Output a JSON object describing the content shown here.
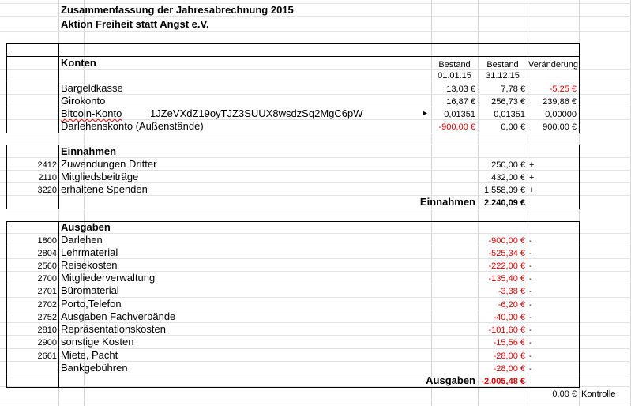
{
  "title": {
    "line1": "Zusammenfassung der Jahresabrechnung 2015",
    "line2": "Aktion Freiheit statt Angst e.V."
  },
  "konten": {
    "header": "Konten",
    "col_bestand": "Bestand",
    "col_bestand2": "Bestand",
    "col_change": "Veränderung",
    "date_start": "01.01.15",
    "date_end": "31.12.15",
    "rows": [
      {
        "label": "Bargeldkasse",
        "start": "13,03 €",
        "end": "7,78 €",
        "change": "-5,25 €"
      },
      {
        "label": "Girokonto",
        "start": "16,87 €",
        "end": "256,73 €",
        "change": "239,86 €"
      },
      {
        "label": "Bitcoin-Konto",
        "address": "1JZeVXdZ19oyTJZ3SUUX8wsdzSq2MgC6pW",
        "start": "0,01351",
        "end": "0,01351",
        "change": "0,00000"
      },
      {
        "label": "Darlehenskonto (Außenstände)",
        "start": "-900,00 €",
        "end": "0,00 €",
        "change": "900,00 €"
      }
    ]
  },
  "einnahmen": {
    "header": "Einnahmen",
    "rows": [
      {
        "code": "2412",
        "label": "Zuwendungen Dritter",
        "amount": "250,00 €",
        "sign": "+"
      },
      {
        "code": "2110",
        "label": "Mitgliedsbeiträge",
        "amount": "432,00 €",
        "sign": "+"
      },
      {
        "code": "3220",
        "label": "erhaltene Spenden",
        "amount": "1.558,09 €",
        "sign": "+"
      }
    ],
    "total_label": "Einnahmen",
    "total": "2.240,09 €"
  },
  "ausgaben": {
    "header": "Ausgaben",
    "rows": [
      {
        "code": "1800",
        "label": "Darlehen",
        "amount": "-900,00 €",
        "sign": "-"
      },
      {
        "code": "2804",
        "label": "Lehrmaterial",
        "amount": "-525,34 €",
        "sign": "-"
      },
      {
        "code": "2560",
        "label": "Reisekosten",
        "amount": "-222,00 €",
        "sign": "-"
      },
      {
        "code": "2700",
        "label": "Mitgliederverwaltung",
        "amount": "-135,40 €",
        "sign": "-"
      },
      {
        "code": "2701",
        "label": "Büromaterial",
        "amount": "-3,38 €",
        "sign": "-"
      },
      {
        "code": "2702",
        "label": "Porto,Telefon",
        "amount": "-6,20 €",
        "sign": "-"
      },
      {
        "code": "2752",
        "label": "Ausgaben Fachverbände",
        "amount": "-40,00 €",
        "sign": "-"
      },
      {
        "code": "2810",
        "label": "Repräsentationskosten",
        "amount": "-101,60 €",
        "sign": "-"
      },
      {
        "code": "2900",
        "label": "sonstige Kosten",
        "amount": "-15,56 €",
        "sign": "-"
      },
      {
        "code": "2661",
        "label": "Miete, Pacht",
        "amount": "-28,00 €",
        "sign": "-"
      },
      {
        "code": "",
        "label": "Bankgebühren",
        "amount": "-28,00 €",
        "sign": "-"
      }
    ],
    "total_label": "Ausgaben",
    "total": "-2.005,48 €"
  },
  "kontrolle": {
    "value": "0,00 €",
    "label": "Kontrolle"
  },
  "colors": {
    "negative": "#e00000",
    "gridline": "#d4d4d4",
    "spellcheck": "#e00000"
  }
}
